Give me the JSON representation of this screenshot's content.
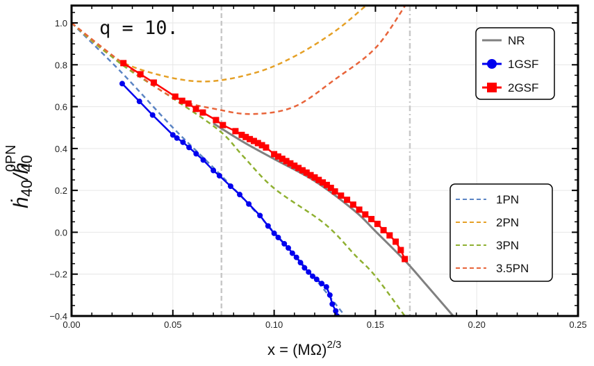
{
  "chart_data": {
    "type": "line",
    "annotation": "q = 10.",
    "xlabel": "x = (MΩ)",
    "xlabel_sup": "2/3",
    "ylabel_main": "ḣ",
    "ylabel_sub1": "40",
    "ylabel_slash": "/ḣ",
    "ylabel_sub2": "40",
    "ylabel_sup": "0PN",
    "xlim": [
      0,
      0.25
    ],
    "ylim": [
      -0.4,
      1.08
    ],
    "xticks": [
      "0.00",
      "0.05",
      "0.10",
      "0.15",
      "0.20",
      "0.25"
    ],
    "yticks": [
      "−0.4",
      "−0.2",
      "0.0",
      "0.2",
      "0.4",
      "0.6",
      "0.8",
      "1.0"
    ],
    "grid": true,
    "reference_lines": [
      {
        "x": 0.074,
        "style": "dashed",
        "color": "#c8c8c8"
      },
      {
        "x": 0.167,
        "style": "dashdot",
        "color": "#c8c8c8"
      }
    ],
    "series": [
      {
        "name": "1PN",
        "color": "#5b84c4",
        "style": "dashed",
        "legend": 2,
        "points": [
          [
            0,
            1
          ],
          [
            0.025,
            0.76
          ],
          [
            0.05,
            0.5
          ],
          [
            0.075,
            0.26
          ],
          [
            0.1,
            0.0
          ],
          [
            0.12,
            -0.22
          ],
          [
            0.135,
            -0.4
          ]
        ]
      },
      {
        "name": "2PN",
        "color": "#e5a026",
        "style": "dashed",
        "legend": 2,
        "points": [
          [
            0,
            1
          ],
          [
            0.02,
            0.84
          ],
          [
            0.04,
            0.76
          ],
          [
            0.065,
            0.72
          ],
          [
            0.09,
            0.76
          ],
          [
            0.11,
            0.84
          ],
          [
            0.13,
            0.96
          ],
          [
            0.145,
            1.08
          ]
        ]
      },
      {
        "name": "3PN",
        "color": "#8fb031",
        "style": "dashed",
        "legend": 2,
        "points": [
          [
            0,
            1
          ],
          [
            0.025,
            0.8
          ],
          [
            0.05,
            0.64
          ],
          [
            0.073,
            0.485
          ],
          [
            0.085,
            0.36
          ],
          [
            0.1,
            0.21
          ],
          [
            0.125,
            0.04
          ],
          [
            0.14,
            -0.11
          ],
          [
            0.15,
            -0.21
          ],
          [
            0.1645,
            -0.4
          ]
        ]
      },
      {
        "name": "3.5PN",
        "color": "#e8643a",
        "style": "dashed",
        "legend": 2,
        "points": [
          [
            0,
            1
          ],
          [
            0.025,
            0.81
          ],
          [
            0.05,
            0.645
          ],
          [
            0.073,
            0.585
          ],
          [
            0.09,
            0.565
          ],
          [
            0.11,
            0.6
          ],
          [
            0.13,
            0.73
          ],
          [
            0.15,
            0.88
          ],
          [
            0.1645,
            1.08
          ]
        ]
      },
      {
        "name": "NR",
        "color": "#808080",
        "style": "solid",
        "legend": 1,
        "points": [
          [
            0.07,
            0.52
          ],
          [
            0.085,
            0.43
          ],
          [
            0.1,
            0.35
          ],
          [
            0.12,
            0.245
          ],
          [
            0.14,
            0.1
          ],
          [
            0.15,
            0.005
          ],
          [
            0.165,
            -0.14
          ],
          [
            0.175,
            -0.25
          ],
          [
            0.1884,
            -0.4
          ]
        ]
      },
      {
        "name": "1GSF",
        "color": "#0000ee",
        "style": "solid",
        "marker": "circle",
        "legend": 1,
        "points": [
          [
            0.025,
            0.71
          ],
          [
            0.0335,
            0.625
          ],
          [
            0.04,
            0.56
          ],
          [
            0.05,
            0.465
          ],
          [
            0.052,
            0.45
          ],
          [
            0.055,
            0.43
          ],
          [
            0.058,
            0.405
          ],
          [
            0.0615,
            0.375
          ],
          [
            0.065,
            0.345
          ],
          [
            0.07,
            0.295
          ],
          [
            0.073,
            0.27
          ],
          [
            0.0785,
            0.22
          ],
          [
            0.083,
            0.18
          ],
          [
            0.0875,
            0.135
          ],
          [
            0.093,
            0.08
          ],
          [
            0.097,
            0.03
          ],
          [
            0.1,
            -0.005
          ],
          [
            0.102,
            -0.025
          ],
          [
            0.105,
            -0.055
          ],
          [
            0.107,
            -0.075
          ],
          [
            0.109,
            -0.1
          ],
          [
            0.111,
            -0.12
          ],
          [
            0.113,
            -0.145
          ],
          [
            0.115,
            -0.17
          ],
          [
            0.117,
            -0.19
          ],
          [
            0.119,
            -0.21
          ],
          [
            0.121,
            -0.225
          ],
          [
            0.1235,
            -0.245
          ],
          [
            0.1258,
            -0.261
          ],
          [
            0.1275,
            -0.3
          ],
          [
            0.1287,
            -0.343
          ],
          [
            0.1304,
            -0.376
          ],
          [
            0.131,
            -0.4
          ]
        ]
      },
      {
        "name": "2GSF",
        "color": "#ff0000",
        "style": "solid",
        "marker": "square",
        "legend": 1,
        "points": [
          [
            0.0256,
            0.808
          ],
          [
            0.034,
            0.755
          ],
          [
            0.0406,
            0.715
          ],
          [
            0.0512,
            0.648
          ],
          [
            0.0546,
            0.628
          ],
          [
            0.0577,
            0.615
          ],
          [
            0.0614,
            0.589
          ],
          [
            0.0648,
            0.572
          ],
          [
            0.0713,
            0.536
          ],
          [
            0.0747,
            0.512
          ],
          [
            0.0809,
            0.483
          ],
          [
            0.084,
            0.465
          ],
          [
            0.086,
            0.455
          ],
          [
            0.088,
            0.445
          ],
          [
            0.09,
            0.436
          ],
          [
            0.092,
            0.426
          ],
          [
            0.094,
            0.416
          ],
          [
            0.096,
            0.405
          ],
          [
            0.1,
            0.373
          ],
          [
            0.102,
            0.362
          ],
          [
            0.104,
            0.351
          ],
          [
            0.106,
            0.34
          ],
          [
            0.108,
            0.329
          ],
          [
            0.11,
            0.318
          ],
          [
            0.112,
            0.307
          ],
          [
            0.114,
            0.296
          ],
          [
            0.116,
            0.285
          ],
          [
            0.118,
            0.273
          ],
          [
            0.12,
            0.262
          ],
          [
            0.122,
            0.25
          ],
          [
            0.124,
            0.238
          ],
          [
            0.126,
            0.226
          ],
          [
            0.128,
            0.212
          ],
          [
            0.13,
            0.195
          ],
          [
            0.133,
            0.175
          ],
          [
            0.136,
            0.155
          ],
          [
            0.139,
            0.132
          ],
          [
            0.142,
            0.108
          ],
          [
            0.145,
            0.085
          ],
          [
            0.148,
            0.063
          ],
          [
            0.151,
            0.04
          ],
          [
            0.154,
            0.01
          ],
          [
            0.157,
            -0.015
          ],
          [
            0.16,
            -0.045
          ],
          [
            0.1625,
            -0.085
          ],
          [
            0.1645,
            -0.128
          ]
        ]
      }
    ]
  }
}
